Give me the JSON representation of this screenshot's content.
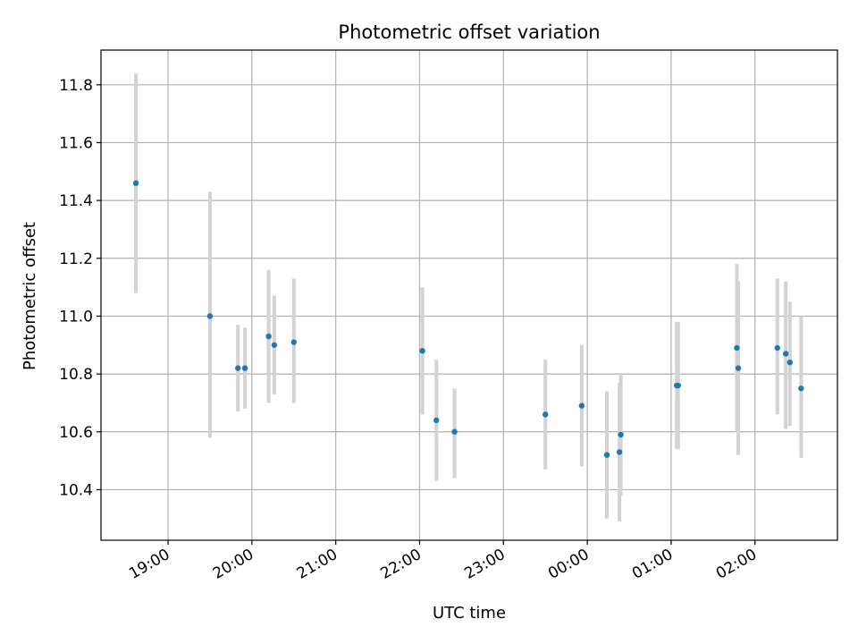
{
  "chart_data": {
    "type": "scatter",
    "title": "Photometric offset variation",
    "xlabel": "UTC time",
    "ylabel": "Photometric offset",
    "x_ticks": [
      "19:00",
      "20:00",
      "21:00",
      "22:00",
      "23:00",
      "00:00",
      "01:00",
      "02:00"
    ],
    "y_ticks": [
      "10.4",
      "10.6",
      "10.8",
      "11.0",
      "11.2",
      "11.4",
      "11.6",
      "11.8"
    ],
    "xlim": [
      "18:12",
      "02:59"
    ],
    "ylim": [
      10.225,
      11.92
    ],
    "grid": true,
    "marker_color": "#1f77b4",
    "errorbar_color": "#d3d3d3",
    "points": [
      {
        "x": "18:37",
        "y": 11.46,
        "y_low": 11.08,
        "y_high": 11.84
      },
      {
        "x": "19:30",
        "y": 11.0,
        "y_low": 10.58,
        "y_high": 11.43
      },
      {
        "x": "19:50",
        "y": 10.82,
        "y_low": 10.67,
        "y_high": 10.97
      },
      {
        "x": "19:55",
        "y": 10.82,
        "y_low": 10.68,
        "y_high": 10.96
      },
      {
        "x": "20:12",
        "y": 10.93,
        "y_low": 10.7,
        "y_high": 11.16
      },
      {
        "x": "20:16",
        "y": 10.9,
        "y_low": 10.73,
        "y_high": 11.07
      },
      {
        "x": "20:30",
        "y": 10.91,
        "y_low": 10.7,
        "y_high": 11.13
      },
      {
        "x": "22:02",
        "y": 10.88,
        "y_low": 10.66,
        "y_high": 11.1
      },
      {
        "x": "22:12",
        "y": 10.64,
        "y_low": 10.43,
        "y_high": 10.85
      },
      {
        "x": "22:25",
        "y": 10.6,
        "y_low": 10.44,
        "y_high": 10.75
      },
      {
        "x": "23:30",
        "y": 10.66,
        "y_low": 10.47,
        "y_high": 10.85
      },
      {
        "x": "23:56",
        "y": 10.69,
        "y_low": 10.48,
        "y_high": 10.9
      },
      {
        "x": "00:14",
        "y": 10.52,
        "y_low": 10.3,
        "y_high": 10.74
      },
      {
        "x": "00:23",
        "y": 10.53,
        "y_low": 10.29,
        "y_high": 10.77
      },
      {
        "x": "00:24",
        "y": 10.59,
        "y_low": 10.38,
        "y_high": 10.8
      },
      {
        "x": "01:04",
        "y": 10.76,
        "y_low": 10.54,
        "y_high": 10.98
      },
      {
        "x": "01:05",
        "y": 10.76,
        "y_low": 10.54,
        "y_high": 10.98
      },
      {
        "x": "01:47",
        "y": 10.89,
        "y_low": 10.6,
        "y_high": 11.18
      },
      {
        "x": "01:48",
        "y": 10.82,
        "y_low": 10.52,
        "y_high": 11.12
      },
      {
        "x": "02:16",
        "y": 10.89,
        "y_low": 10.66,
        "y_high": 11.13
      },
      {
        "x": "02:22",
        "y": 10.87,
        "y_low": 10.61,
        "y_high": 11.12
      },
      {
        "x": "02:25",
        "y": 10.84,
        "y_low": 10.62,
        "y_high": 11.05
      },
      {
        "x": "02:33",
        "y": 10.75,
        "y_low": 10.51,
        "y_high": 11.0
      }
    ]
  }
}
